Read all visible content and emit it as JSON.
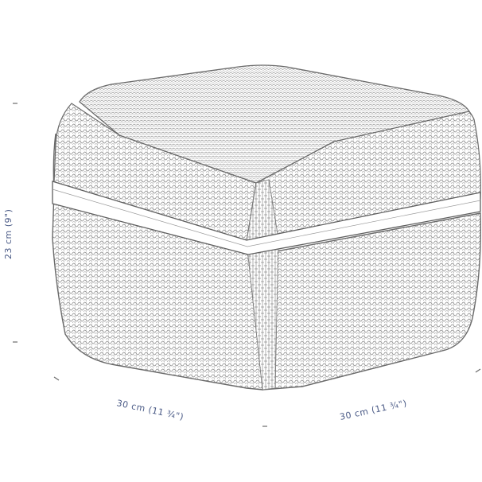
{
  "dimensions": {
    "height_label": "23 cm (9\")",
    "width_left_label": "30 cm (11 ¾\")",
    "width_right_label": "30 cm (11 ¾\")"
  },
  "colors": {
    "line": "#6a6a6a",
    "label": "#4a5a86",
    "background": "#ffffff"
  }
}
